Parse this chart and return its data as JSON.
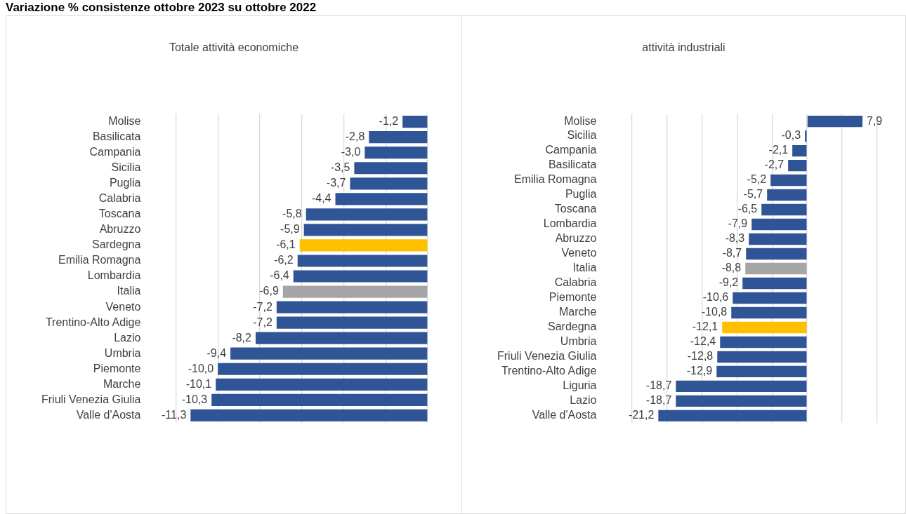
{
  "chart_data": [
    {
      "type": "bar",
      "orientation": "horizontal",
      "title": "Totale attività economiche",
      "annotations": [
        "Variazione % consistenze ottobre 2023 su ottobre 2022"
      ],
      "categories": [
        "Molise",
        "Basilicata",
        "Campania",
        "Sicilia",
        "Puglia",
        "Calabria",
        "Toscana",
        "Abruzzo",
        "Sardegna",
        "Emilia Romagna",
        "Lombardia",
        "Italia",
        "Veneto",
        "Trentino-Alto Adige",
        "Lazio",
        "Umbria",
        "Piemonte",
        "Marche",
        "Friuli Venezia Giulia",
        "Valle d'Aosta"
      ],
      "values": [
        -1.2,
        -2.8,
        -3.0,
        -3.5,
        -3.7,
        -4.4,
        -5.8,
        -5.9,
        -6.1,
        -6.2,
        -6.4,
        -6.9,
        -7.2,
        -7.2,
        -8.2,
        -9.4,
        -10.0,
        -10.1,
        -10.3,
        -11.3
      ],
      "value_labels": [
        "-1,2",
        "-2,8",
        "-3,0",
        "-3,5",
        "-3,7",
        "-4,4",
        "-5,8",
        "-5,9",
        "-6,1",
        "-6,2",
        "-6,4",
        "-6,9",
        "-7,2",
        "-7,2",
        "-8,2",
        "-9,4",
        "-10,0",
        "-10,1",
        "-10,3",
        "-11,3"
      ],
      "colors": [
        "#2f5597",
        "#2f5597",
        "#2f5597",
        "#2f5597",
        "#2f5597",
        "#2f5597",
        "#2f5597",
        "#2f5597",
        "#ffc000",
        "#2f5597",
        "#2f5597",
        "#a5a5a5",
        "#2f5597",
        "#2f5597",
        "#2f5597",
        "#2f5597",
        "#2f5597",
        "#2f5597",
        "#2f5597",
        "#2f5597"
      ],
      "grid": "x",
      "tick_labels": "y",
      "legend": false
    },
    {
      "type": "bar",
      "orientation": "horizontal",
      "title": "attività industriali",
      "categories": [
        "Molise",
        "Sicilia",
        "Campania",
        "Basilicata",
        "Emilia Romagna",
        "Puglia",
        "Toscana",
        "Lombardia",
        "Abruzzo",
        "Veneto",
        "Italia",
        "Calabria",
        "Piemonte",
        "Marche",
        "Sardegna",
        "Umbria",
        "Friuli Venezia Giulia",
        "Trentino-Alto Adige",
        "Liguria",
        "Lazio",
        "Valle d'Aosta"
      ],
      "values": [
        7.9,
        -0.3,
        -2.1,
        -2.7,
        -5.2,
        -5.7,
        -6.5,
        -7.9,
        -8.3,
        -8.7,
        -8.8,
        -9.2,
        -10.6,
        -10.8,
        -12.1,
        -12.4,
        -12.8,
        -12.9,
        -18.7,
        -18.7,
        -21.2
      ],
      "value_labels": [
        "7,9",
        "-0,3",
        "-2,1",
        "-2,7",
        "-5,2",
        "-5,7",
        "-6,5",
        "-7,9",
        "-8,3",
        "-8,7",
        "-8,8",
        "-9,2",
        "-10,6",
        "-10,8",
        "-12,1",
        "-12,4",
        "-12,8",
        "-12,9",
        "-18,7",
        "-18,7",
        "-21,2"
      ],
      "colors": [
        "#2f5597",
        "#2f5597",
        "#2f5597",
        "#2f5597",
        "#2f5597",
        "#2f5597",
        "#2f5597",
        "#2f5597",
        "#2f5597",
        "#2f5597",
        "#a5a5a5",
        "#2f5597",
        "#2f5597",
        "#2f5597",
        "#ffc000",
        "#2f5597",
        "#2f5597",
        "#2f5597",
        "#2f5597",
        "#2f5597",
        "#2f5597"
      ],
      "grid": "x",
      "tick_labels": "y",
      "legend": false
    }
  ]
}
